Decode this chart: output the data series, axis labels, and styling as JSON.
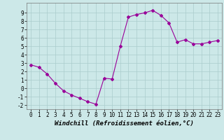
{
  "x": [
    0,
    1,
    2,
    3,
    4,
    5,
    6,
    7,
    8,
    9,
    10,
    11,
    12,
    13,
    14,
    15,
    16,
    17,
    18,
    19,
    20,
    21,
    22,
    23
  ],
  "y": [
    2.8,
    2.5,
    1.7,
    0.6,
    -0.3,
    -0.8,
    -1.2,
    -1.6,
    -1.9,
    1.2,
    1.1,
    5.0,
    8.5,
    8.8,
    9.0,
    9.3,
    8.7,
    7.8,
    5.5,
    5.8,
    5.3,
    5.3,
    5.5,
    5.7
  ],
  "line_color": "#990099",
  "marker": "D",
  "marker_size": 2,
  "bg_color": "#cce8e8",
  "grid_color": "#aacccc",
  "xlabel": "Windchill (Refroidissement éolien,°C)",
  "ylim": [
    -2.5,
    10.2
  ],
  "xlim": [
    -0.5,
    23.5
  ],
  "yticks": [
    -2,
    -1,
    0,
    1,
    2,
    3,
    4,
    5,
    6,
    7,
    8,
    9
  ],
  "xticks": [
    0,
    1,
    2,
    3,
    4,
    5,
    6,
    7,
    8,
    9,
    10,
    11,
    12,
    13,
    14,
    15,
    16,
    17,
    18,
    19,
    20,
    21,
    22,
    23
  ],
  "label_fontsize": 6.5,
  "tick_fontsize": 5.5
}
